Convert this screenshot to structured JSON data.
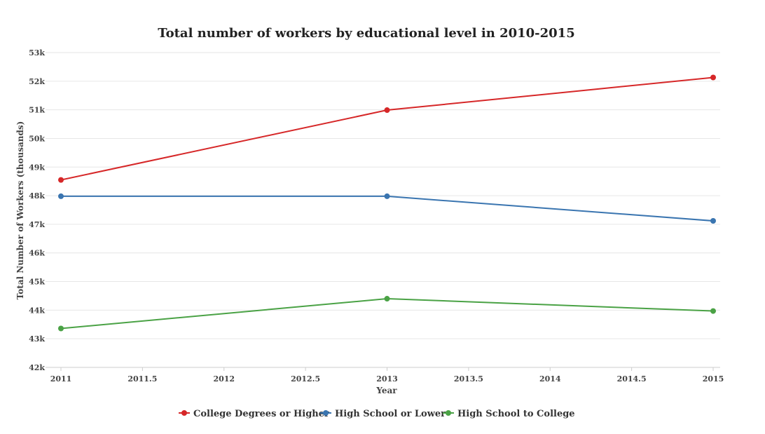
{
  "chart_data": {
    "type": "line",
    "title": "Total number of workers by educational level in 2010-2015",
    "xlabel": "Year",
    "ylabel": "Total Number of Workers (thousands)",
    "xlim": [
      2011,
      2015
    ],
    "ylim": [
      42,
      53
    ],
    "x_ticks": [
      2011,
      2011.5,
      2012,
      2012.5,
      2013,
      2013.5,
      2014,
      2014.5,
      2015
    ],
    "x_tick_labels": [
      "2011",
      "2011.5",
      "2012",
      "2012.5",
      "2013",
      "2013.5",
      "2014",
      "2014.5",
      "2015"
    ],
    "y_ticks": [
      42,
      43,
      44,
      45,
      46,
      47,
      48,
      49,
      50,
      51,
      52,
      53
    ],
    "y_tick_labels": [
      "42k",
      "43k",
      "44k",
      "45k",
      "46k",
      "47k",
      "48k",
      "49k",
      "50k",
      "51k",
      "52k",
      "53k"
    ],
    "grid": true,
    "legend_position": "bottom-center",
    "x": [
      2011,
      2013,
      2015
    ],
    "series": [
      {
        "name": "College Degrees or Higher",
        "color": "#d62728",
        "values": [
          48.55,
          50.99,
          52.13
        ]
      },
      {
        "name": "High School or Lower",
        "color": "#3a75b0",
        "values": [
          47.98,
          47.98,
          47.12
        ]
      },
      {
        "name": "High School to College",
        "color": "#4aa245",
        "values": [
          43.36,
          44.4,
          43.97
        ]
      }
    ]
  }
}
